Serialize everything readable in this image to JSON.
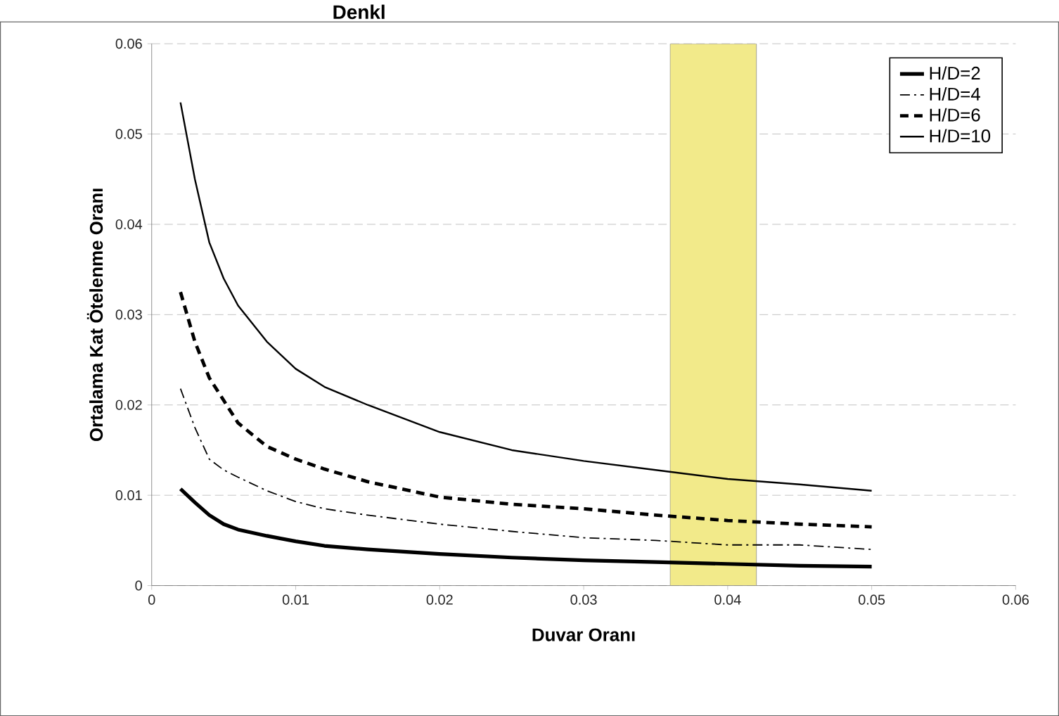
{
  "chart_data": {
    "type": "line",
    "title": "Denkl",
    "xlabel": "Duvar Oranı",
    "ylabel": "Ortalama Kat Ötelenme Oranı",
    "x": [
      0.002,
      0.003,
      0.004,
      0.005,
      0.006,
      0.008,
      0.01,
      0.012,
      0.015,
      0.02,
      0.025,
      0.03,
      0.035,
      0.04,
      0.045,
      0.05
    ],
    "series": [
      {
        "name": "H/D=2",
        "color": "#000000",
        "line_style": "solid",
        "values": [
          0.0107,
          0.0092,
          0.0078,
          0.0068,
          0.0062,
          0.0055,
          0.0049,
          0.0044,
          0.004,
          0.0035,
          0.0031,
          0.0028,
          0.0026,
          0.0024,
          0.0022,
          0.0021
        ]
      },
      {
        "name": "H/D=4",
        "color": "#000000",
        "line_style": "dashdot",
        "values": [
          0.0218,
          0.0175,
          0.014,
          0.0128,
          0.012,
          0.0105,
          0.0093,
          0.0085,
          0.0078,
          0.0068,
          0.006,
          0.0053,
          0.005,
          0.0045,
          0.0045,
          0.004
        ]
      },
      {
        "name": "H/D=6",
        "color": "#000000",
        "line_style": "dashed",
        "values": [
          0.0325,
          0.027,
          0.023,
          0.0205,
          0.018,
          0.0154,
          0.014,
          0.0129,
          0.0115,
          0.0098,
          0.009,
          0.0085,
          0.0078,
          0.0072,
          0.0068,
          0.0065
        ]
      },
      {
        "name": "H/D=10",
        "color": "#000000",
        "line_style": "solid",
        "values": [
          0.0535,
          0.045,
          0.038,
          0.034,
          0.031,
          0.027,
          0.024,
          0.022,
          0.02,
          0.017,
          0.015,
          0.0138,
          0.0128,
          0.0118,
          0.0112,
          0.0105
        ]
      }
    ],
    "xlim": [
      0,
      0.06
    ],
    "xticks": [
      0,
      0.01,
      0.02,
      0.03,
      0.04,
      0.05,
      0.06
    ],
    "ylim": [
      0,
      0.06
    ],
    "yticks": [
      0,
      0.01,
      0.02,
      0.03,
      0.04,
      0.05,
      0.06
    ],
    "grid": "y",
    "legend": "top right",
    "marker": "none",
    "bands": [
      {
        "axis": "x",
        "from": 0.036,
        "to": 0.042,
        "color": "#f2ea8a"
      }
    ]
  }
}
